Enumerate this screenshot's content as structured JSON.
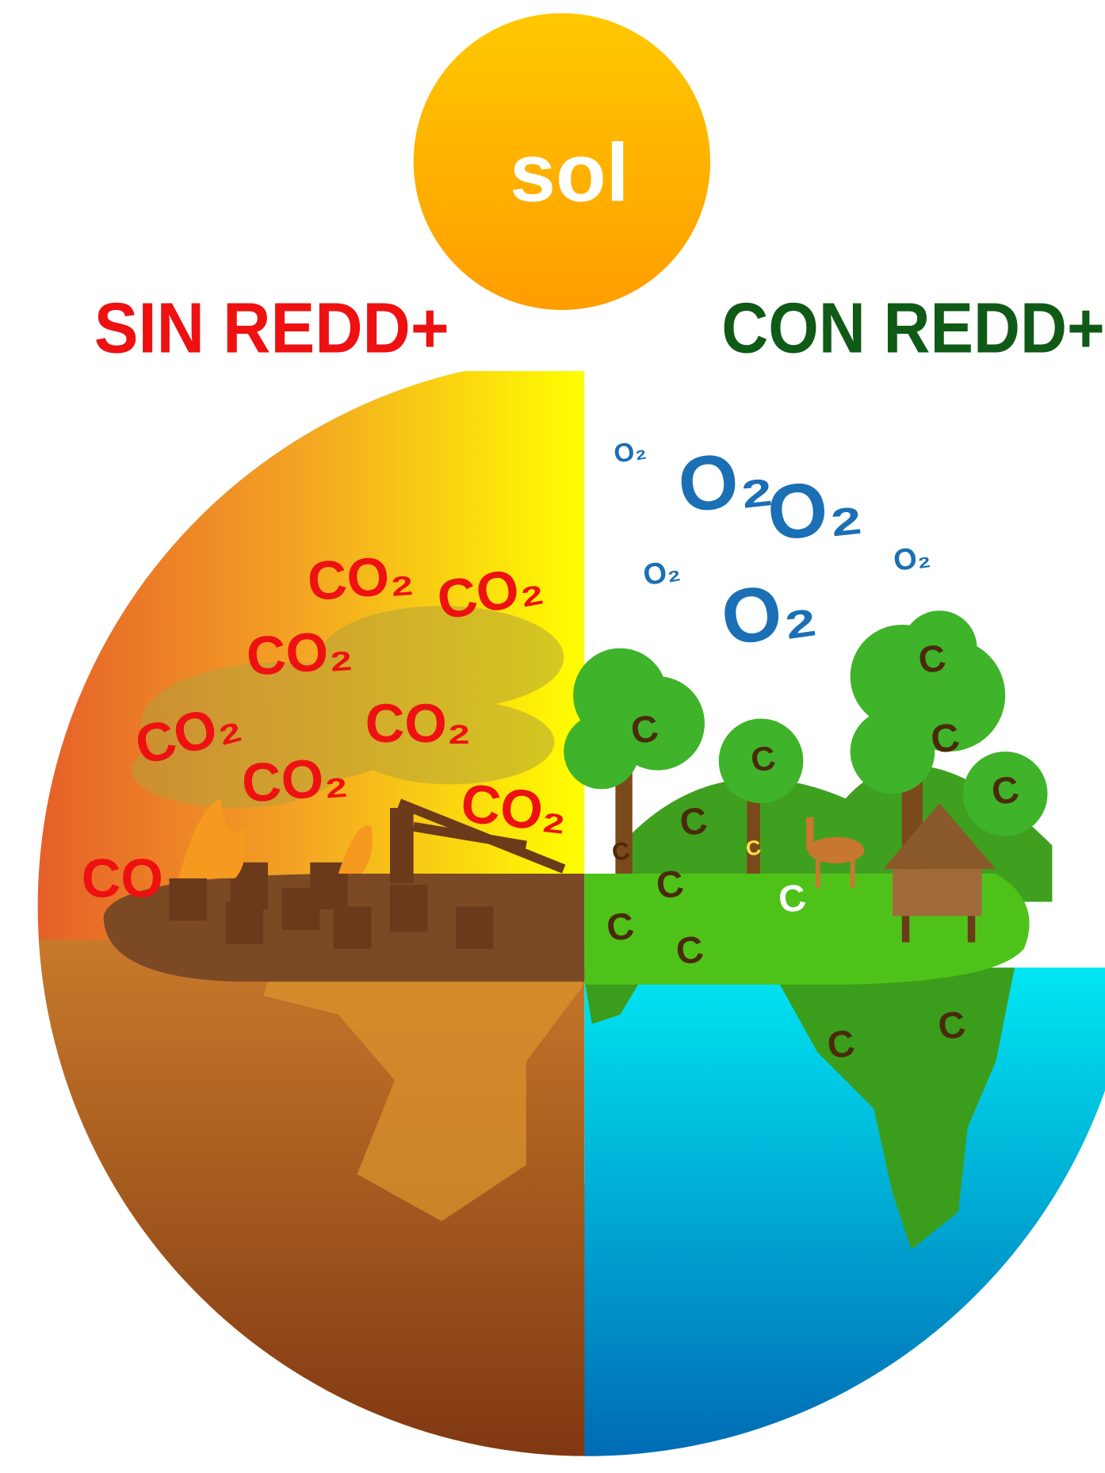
{
  "header": {
    "sun": "sol",
    "left_title": "SIN REDD+",
    "right_title": "CON REDD+"
  },
  "co2_labels": [
    "CO₂",
    "CO₂",
    "CO₂",
    "CO₂",
    "CO₂",
    "CO₂",
    "CO₂",
    "CO"
  ],
  "o2_labels": [
    "O₂",
    "O₂",
    "O₂",
    "O₂",
    "O₂",
    "O₂"
  ],
  "carbon_labels": [
    "C",
    "C",
    "C",
    "C",
    "C",
    "C",
    "C",
    "C",
    "C",
    "C",
    "C",
    "C",
    "C",
    "C"
  ]
}
